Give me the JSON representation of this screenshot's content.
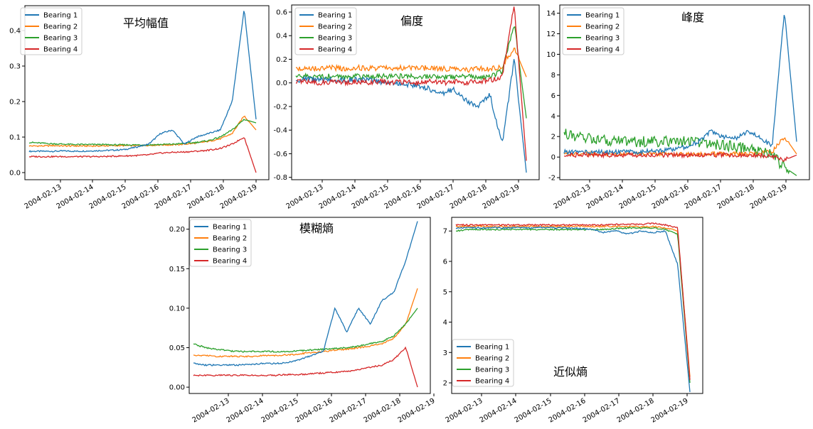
{
  "colors": {
    "Bearing 1": "#1f77b4",
    "Bearing 2": "#ff7f0e",
    "Bearing 3": "#2ca02c",
    "Bearing 4": "#d62728"
  },
  "chart_data": [
    {
      "type": "line",
      "title": "平均幅值",
      "x_ticks": [
        "2004-02-13",
        "2004-02-14",
        "2004-02-15",
        "2004-02-16",
        "2004-02-17",
        "2004-02-18",
        "2004-02-19"
      ],
      "x_range": [
        "2004-02-12",
        "2004-02-19"
      ],
      "ylim": [
        -0.02,
        0.47
      ],
      "y_ticks": [
        0.0,
        0.1,
        0.2,
        0.3,
        0.4
      ],
      "legend": "top-left",
      "series": [
        {
          "name": "Bearing 1",
          "values": [
            0.06,
            0.06,
            0.06,
            0.061,
            0.06,
            0.061,
            0.062,
            0.063,
            0.065,
            0.072,
            0.08,
            0.11,
            0.12,
            0.08,
            0.1,
            0.11,
            0.12,
            0.2,
            0.46,
            0.15
          ]
        },
        {
          "name": "Bearing 2",
          "values": [
            0.075,
            0.075,
            0.076,
            0.075,
            0.075,
            0.075,
            0.075,
            0.076,
            0.076,
            0.076,
            0.077,
            0.078,
            0.078,
            0.08,
            0.083,
            0.088,
            0.095,
            0.11,
            0.16,
            0.12
          ]
        },
        {
          "name": "Bearing 3",
          "values": [
            0.085,
            0.083,
            0.081,
            0.08,
            0.079,
            0.079,
            0.079,
            0.078,
            0.078,
            0.078,
            0.078,
            0.079,
            0.08,
            0.082,
            0.085,
            0.09,
            0.1,
            0.12,
            0.15,
            0.14
          ]
        },
        {
          "name": "Bearing 4",
          "values": [
            0.045,
            0.045,
            0.045,
            0.045,
            0.045,
            0.045,
            0.045,
            0.046,
            0.047,
            0.048,
            0.05,
            0.055,
            0.057,
            0.058,
            0.06,
            0.063,
            0.068,
            0.08,
            0.1,
            0.0
          ]
        }
      ]
    },
    {
      "type": "line",
      "title": "偏度",
      "x_ticks": [
        "2004-02-13",
        "2004-02-14",
        "2004-02-15",
        "2004-02-16",
        "2004-02-17",
        "2004-02-18",
        "2004-02-19"
      ],
      "x_range": [
        "2004-02-12",
        "2004-02-19"
      ],
      "ylim": [
        -0.82,
        0.66
      ],
      "y_ticks": [
        -0.8,
        -0.6,
        -0.4,
        -0.2,
        0.0,
        0.2,
        0.4,
        0.6
      ],
      "legend": "top-left",
      "series": [
        {
          "name": "Bearing 1",
          "values": [
            0.02,
            0.03,
            0.02,
            0.03,
            0.02,
            0.03,
            0.02,
            0.01,
            0.0,
            -0.01,
            -0.02,
            -0.05,
            -0.1,
            -0.05,
            -0.15,
            -0.2,
            -0.1,
            -0.52,
            0.2,
            -0.76
          ]
        },
        {
          "name": "Bearing 2",
          "values": [
            0.12,
            0.13,
            0.12,
            0.13,
            0.12,
            0.13,
            0.12,
            0.13,
            0.12,
            0.13,
            0.12,
            0.13,
            0.12,
            0.12,
            0.11,
            0.12,
            0.12,
            0.14,
            0.3,
            0.05
          ]
        },
        {
          "name": "Bearing 3",
          "values": [
            0.05,
            0.06,
            0.05,
            0.06,
            0.05,
            0.06,
            0.05,
            0.06,
            0.05,
            0.06,
            0.05,
            0.06,
            0.05,
            0.05,
            0.06,
            0.05,
            0.05,
            0.1,
            0.5,
            -0.3
          ]
        },
        {
          "name": "Bearing 4",
          "values": [
            0.01,
            0.01,
            0.0,
            0.01,
            0.0,
            0.01,
            0.0,
            0.01,
            0.0,
            0.01,
            0.0,
            0.01,
            0.0,
            0.01,
            0.0,
            0.01,
            0.02,
            0.05,
            0.66,
            -0.66
          ]
        }
      ]
    },
    {
      "type": "line",
      "title": "峰度",
      "x_ticks": [
        "2004-02-13",
        "2004-02-14",
        "2004-02-15",
        "2004-02-16",
        "2004-02-17",
        "2004-02-18",
        "2004-02-19"
      ],
      "x_range": [
        "2004-02-12",
        "2004-02-19"
      ],
      "ylim": [
        -2.2,
        14.8
      ],
      "y_ticks": [
        -2,
        0,
        2,
        4,
        6,
        8,
        10,
        12,
        14
      ],
      "legend": "top-left",
      "series": [
        {
          "name": "Bearing 1",
          "values": [
            0.5,
            0.5,
            0.5,
            0.5,
            0.5,
            0.5,
            0.5,
            0.6,
            0.6,
            0.8,
            1.0,
            1.5,
            2.5,
            2.0,
            1.8,
            2.5,
            2.0,
            1.0,
            14.2,
            1.5
          ]
        },
        {
          "name": "Bearing 2",
          "values": [
            0.3,
            0.3,
            0.3,
            0.3,
            0.3,
            0.3,
            0.3,
            0.3,
            0.3,
            0.3,
            0.3,
            0.3,
            0.3,
            0.3,
            0.3,
            0.3,
            0.4,
            0.5,
            2.0,
            0.3
          ]
        },
        {
          "name": "Bearing 3",
          "values": [
            2.3,
            2.0,
            1.8,
            1.7,
            1.6,
            1.5,
            1.5,
            1.5,
            1.5,
            1.5,
            1.5,
            1.4,
            1.3,
            1.2,
            1.0,
            0.8,
            0.5,
            0.2,
            -1.0,
            -1.8
          ]
        },
        {
          "name": "Bearing 4",
          "values": [
            0.2,
            0.2,
            0.2,
            0.2,
            0.2,
            0.2,
            0.2,
            0.2,
            0.2,
            0.2,
            0.2,
            0.2,
            0.2,
            0.2,
            0.2,
            0.2,
            0.2,
            0.1,
            -0.3,
            0.2
          ]
        }
      ]
    },
    {
      "type": "line",
      "title": "模糊熵",
      "x_ticks": [
        "2004-02-13",
        "2004-02-14",
        "2004-02-15",
        "2004-02-16",
        "2004-02-17",
        "2004-02-18",
        "2004-02-19"
      ],
      "x_range": [
        "2004-02-12",
        "2004-02-19"
      ],
      "ylim": [
        -0.008,
        0.215
      ],
      "y_ticks": [
        0.0,
        0.05,
        0.1,
        0.15,
        0.2
      ],
      "legend": "top-left",
      "series": [
        {
          "name": "Bearing 1",
          "values": [
            0.03,
            0.028,
            0.028,
            0.028,
            0.028,
            0.029,
            0.03,
            0.03,
            0.031,
            0.035,
            0.04,
            0.045,
            0.1,
            0.07,
            0.1,
            0.08,
            0.11,
            0.12,
            0.16,
            0.21
          ]
        },
        {
          "name": "Bearing 2",
          "values": [
            0.04,
            0.04,
            0.039,
            0.039,
            0.039,
            0.039,
            0.04,
            0.04,
            0.041,
            0.042,
            0.044,
            0.045,
            0.047,
            0.048,
            0.05,
            0.052,
            0.055,
            0.062,
            0.08,
            0.125
          ]
        },
        {
          "name": "Bearing 3",
          "values": [
            0.055,
            0.05,
            0.048,
            0.046,
            0.045,
            0.045,
            0.045,
            0.045,
            0.045,
            0.046,
            0.047,
            0.048,
            0.049,
            0.05,
            0.052,
            0.055,
            0.058,
            0.065,
            0.08,
            0.1
          ]
        },
        {
          "name": "Bearing 4",
          "values": [
            0.015,
            0.015,
            0.015,
            0.015,
            0.015,
            0.015,
            0.015,
            0.015,
            0.016,
            0.016,
            0.017,
            0.018,
            0.019,
            0.02,
            0.022,
            0.025,
            0.028,
            0.035,
            0.05,
            0.0
          ]
        }
      ]
    },
    {
      "type": "line",
      "title": "近似熵",
      "x_ticks": [
        "2004-02-13",
        "2004-02-14",
        "2004-02-15",
        "2004-02-16",
        "2004-02-17",
        "2004-02-18",
        "2004-02-19"
      ],
      "x_range": [
        "2004-02-12",
        "2004-02-19"
      ],
      "ylim": [
        1.65,
        7.45
      ],
      "y_ticks": [
        2,
        3,
        4,
        5,
        6,
        7
      ],
      "legend": "bottom-left",
      "series": [
        {
          "name": "Bearing 1",
          "values": [
            7.1,
            7.12,
            7.1,
            7.12,
            7.1,
            7.12,
            7.1,
            7.12,
            7.1,
            7.1,
            7.08,
            7.05,
            6.95,
            7.0,
            6.9,
            7.0,
            6.95,
            7.0,
            5.9,
            1.7
          ]
        },
        {
          "name": "Bearing 2",
          "values": [
            7.15,
            7.15,
            7.16,
            7.15,
            7.15,
            7.15,
            7.16,
            7.15,
            7.15,
            7.15,
            7.16,
            7.15,
            7.15,
            7.15,
            7.15,
            7.14,
            7.15,
            7.1,
            7.0,
            2.2
          ]
        },
        {
          "name": "Bearing 3",
          "values": [
            7.0,
            7.05,
            7.05,
            7.05,
            7.05,
            7.05,
            7.05,
            7.05,
            7.05,
            7.05,
            7.05,
            7.05,
            7.05,
            7.08,
            7.1,
            7.1,
            7.1,
            7.05,
            6.9,
            2.0
          ]
        },
        {
          "name": "Bearing 4",
          "values": [
            7.2,
            7.2,
            7.2,
            7.2,
            7.2,
            7.2,
            7.2,
            7.2,
            7.2,
            7.2,
            7.2,
            7.2,
            7.2,
            7.22,
            7.22,
            7.22,
            7.25,
            7.2,
            7.1,
            2.1
          ]
        }
      ]
    }
  ]
}
